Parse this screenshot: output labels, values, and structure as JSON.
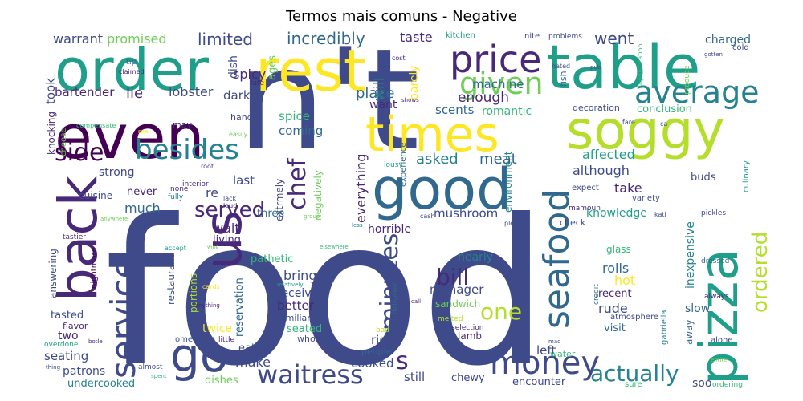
{
  "title": "Termos mais comuns - Negative",
  "palette": [
    "#440154",
    "#482878",
    "#3e4a89",
    "#31688e",
    "#26828e",
    "#1f9e89",
    "#35b779",
    "#6ece58",
    "#b5de2b",
    "#fde725"
  ],
  "words": [
    {
      "text": "food",
      "c": 2
    },
    {
      "text": "n't",
      "c": 2
    },
    {
      "text": "order",
      "c": 5
    },
    {
      "text": "rest",
      "c": 9
    },
    {
      "text": "table",
      "c": 5
    },
    {
      "text": "even",
      "c": 0
    },
    {
      "text": "times",
      "c": 9
    },
    {
      "text": "soggy",
      "c": 8
    },
    {
      "text": "good",
      "c": 3
    },
    {
      "text": "pizza",
      "c": 5
    },
    {
      "text": "back",
      "c": 1
    },
    {
      "text": "us",
      "c": 1
    },
    {
      "text": "go",
      "c": 2
    },
    {
      "text": "price",
      "c": 1
    },
    {
      "text": "given",
      "c": 7
    },
    {
      "text": "average",
      "c": 4
    },
    {
      "text": "seafood",
      "c": 3
    },
    {
      "text": "service",
      "c": 2
    },
    {
      "text": "side",
      "c": 0
    },
    {
      "text": "besides",
      "c": 4
    },
    {
      "text": "money",
      "c": 2
    },
    {
      "text": "waitress",
      "c": 2
    },
    {
      "text": "actually",
      "c": 4
    },
    {
      "text": "minutes",
      "c": 2
    },
    {
      "text": "chef",
      "c": 1
    },
    {
      "text": "served",
      "c": 1
    },
    {
      "text": "s",
      "c": 1
    },
    {
      "text": "bill",
      "c": 1
    },
    {
      "text": "one",
      "c": 8
    },
    {
      "text": "ordered",
      "c": 8
    },
    {
      "text": "limited",
      "c": 2
    },
    {
      "text": "incredibly",
      "c": 3
    },
    {
      "text": "went",
      "c": 2
    },
    {
      "text": "promised",
      "c": 7
    },
    {
      "text": "warrant",
      "c": 2
    },
    {
      "text": "taste",
      "c": 1
    },
    {
      "text": "charged",
      "c": 3
    },
    {
      "text": "kitchen",
      "c": 5
    },
    {
      "text": "nite",
      "c": 2
    },
    {
      "text": "problems",
      "c": 2
    },
    {
      "text": "cold",
      "c": 2
    },
    {
      "text": "ages",
      "c": 7
    },
    {
      "text": "will",
      "c": 4
    },
    {
      "text": "barely",
      "c": 9
    },
    {
      "text": "cost",
      "c": 1
    },
    {
      "text": "tip",
      "c": 3
    },
    {
      "text": "claimed",
      "c": 1
    },
    {
      "text": "took",
      "c": 2
    },
    {
      "text": "spicy",
      "c": 1
    },
    {
      "text": "dish",
      "c": 2
    },
    {
      "text": "late",
      "c": 1
    },
    {
      "text": "machine",
      "c": 3
    },
    {
      "text": "fish",
      "c": 3
    },
    {
      "text": "hated",
      "c": 2
    },
    {
      "text": "pub",
      "c": 2
    },
    {
      "text": "sophistication",
      "c": 6
    },
    {
      "text": "produce",
      "c": 7
    },
    {
      "text": "gotten",
      "c": 2
    },
    {
      "text": "bartender",
      "c": 1
    },
    {
      "text": "lie",
      "c": 1
    },
    {
      "text": "lobster",
      "c": 2
    },
    {
      "text": "dark",
      "c": 2
    },
    {
      "text": "place",
      "c": 3
    },
    {
      "text": "enough",
      "c": 1
    },
    {
      "text": "want",
      "c": 1
    },
    {
      "text": "scents",
      "c": 3
    },
    {
      "text": "romantic",
      "c": 6
    },
    {
      "text": "shows",
      "c": 1
    },
    {
      "text": "conclusion",
      "c": 6
    },
    {
      "text": "decoration",
      "c": 2
    },
    {
      "text": "may",
      "c": 1
    },
    {
      "text": "hands",
      "c": 2
    },
    {
      "text": "spice",
      "c": 6
    },
    {
      "text": "coming",
      "c": 3
    },
    {
      "text": "knocking",
      "c": 1
    },
    {
      "text": "compensate",
      "c": 6
    },
    {
      "text": "easily",
      "c": 7
    },
    {
      "text": "cheese",
      "c": 7
    },
    {
      "text": "see",
      "c": 9
    },
    {
      "text": "fare",
      "c": 2
    },
    {
      "text": "ca",
      "c": 2
    },
    {
      "text": "asked",
      "c": 4
    },
    {
      "text": "meat",
      "c": 3
    },
    {
      "text": "affected",
      "c": 5
    },
    {
      "text": "experience",
      "c": 3
    },
    {
      "text": "strong",
      "c": 2
    },
    {
      "text": "although",
      "c": 2
    },
    {
      "text": "take",
      "c": 1
    },
    {
      "text": "extrmely",
      "c": 2
    },
    {
      "text": "negatively",
      "c": 7
    },
    {
      "text": "environment",
      "c": 4
    },
    {
      "text": "buds",
      "c": 2
    },
    {
      "text": "culinary",
      "c": 5
    },
    {
      "text": "lousy",
      "c": 5
    },
    {
      "text": "roof",
      "c": 2
    },
    {
      "text": "interior",
      "c": 1
    },
    {
      "text": "last",
      "c": 2
    },
    {
      "text": "none",
      "c": 1
    },
    {
      "text": "fully",
      "c": 4
    },
    {
      "text": "lack",
      "c": 2
    },
    {
      "text": "loud",
      "c": 1
    },
    {
      "text": "never",
      "c": 1
    },
    {
      "text": "re",
      "c": 2
    },
    {
      "text": "cuisine",
      "c": 2
    },
    {
      "text": "much",
      "c": 3
    },
    {
      "text": "everything",
      "c": 1
    },
    {
      "text": "expect",
      "c": 2
    },
    {
      "text": "variety",
      "c": 2
    },
    {
      "text": "knowledge",
      "c": 5
    },
    {
      "text": "mushroom",
      "c": 2
    },
    {
      "text": "mamoun",
      "c": 1
    },
    {
      "text": "kati",
      "c": 2
    },
    {
      "text": "inexpensive",
      "c": 4
    },
    {
      "text": "pickles",
      "c": 2
    },
    {
      "text": "anywhere",
      "c": 7
    },
    {
      "text": "three",
      "c": 3
    },
    {
      "text": "group",
      "c": 7
    },
    {
      "text": "less",
      "c": 4
    },
    {
      "text": "cash",
      "c": 2
    },
    {
      "text": "plenty",
      "c": 2
    },
    {
      "text": "check",
      "c": 2
    },
    {
      "text": "wait",
      "c": 1
    },
    {
      "text": "horrible",
      "c": 1
    },
    {
      "text": "tastier",
      "c": 1
    },
    {
      "text": "living",
      "c": 1
    },
    {
      "text": "wife",
      "c": 2
    },
    {
      "text": "accept",
      "c": 5
    },
    {
      "text": "elsewhere",
      "c": 6
    },
    {
      "text": "glass",
      "c": 6
    },
    {
      "text": "dressed",
      "c": 3
    },
    {
      "text": "nightmare",
      "c": 0
    },
    {
      "text": "answering",
      "c": 2
    },
    {
      "text": "restaurant",
      "c": 2
    },
    {
      "text": "wine",
      "c": 7
    },
    {
      "text": "pathetic",
      "c": 6
    },
    {
      "text": "nearly",
      "c": 4
    },
    {
      "text": "rolls",
      "c": 3
    },
    {
      "text": "gabriella",
      "c": 4
    },
    {
      "text": "always",
      "c": 1
    },
    {
      "text": "reservation",
      "c": 3
    },
    {
      "text": "portions",
      "c": 8
    },
    {
      "text": "bring",
      "c": 2
    },
    {
      "text": "manager",
      "c": 2
    },
    {
      "text": "hot",
      "c": 9
    },
    {
      "text": "recent",
      "c": 1
    },
    {
      "text": "cards",
      "c": 9
    },
    {
      "text": "relatively",
      "c": 5
    },
    {
      "text": "received",
      "c": 2
    },
    {
      "text": "delivered",
      "c": 3
    },
    {
      "text": "call",
      "c": 1
    },
    {
      "text": "sandwich",
      "c": 7
    },
    {
      "text": "rude",
      "c": 2
    },
    {
      "text": "slow",
      "c": 3
    },
    {
      "text": "tasted",
      "c": 2
    },
    {
      "text": "flavor",
      "c": 1
    },
    {
      "text": "two",
      "c": 1
    },
    {
      "text": "better",
      "c": 1
    },
    {
      "text": "anything",
      "c": 1
    },
    {
      "text": "familiar",
      "c": 2
    },
    {
      "text": "melted",
      "c": 8
    },
    {
      "text": "credit",
      "c": 3
    },
    {
      "text": "atmosphere",
      "c": 2
    },
    {
      "text": "visit",
      "c": 3
    },
    {
      "text": "twice",
      "c": 9
    },
    {
      "text": "seated",
      "c": 6
    },
    {
      "text": "selection",
      "c": 1
    },
    {
      "text": "bad",
      "c": 8
    },
    {
      "text": "lamb",
      "c": 1
    },
    {
      "text": "away",
      "c": 3
    },
    {
      "text": "alone",
      "c": 2
    },
    {
      "text": "overdone",
      "c": 5
    },
    {
      "text": "botle",
      "c": 1
    },
    {
      "text": "omelettes",
      "c": 2
    },
    {
      "text": "little",
      "c": 1
    },
    {
      "text": "whole",
      "c": 2
    },
    {
      "text": "right",
      "c": 2
    },
    {
      "text": "seating",
      "c": 2
    },
    {
      "text": "eat",
      "c": 2
    },
    {
      "text": "people",
      "c": 3
    },
    {
      "text": "left",
      "c": 2
    },
    {
      "text": "water",
      "c": 6
    },
    {
      "text": "mad",
      "c": 2
    },
    {
      "text": "entire",
      "c": 7
    },
    {
      "text": "thing",
      "c": 2
    },
    {
      "text": "almost",
      "c": 2
    },
    {
      "text": "make",
      "c": 2
    },
    {
      "text": "cooked",
      "c": 2
    },
    {
      "text": "patrons",
      "c": 2
    },
    {
      "text": "spent",
      "c": 6
    },
    {
      "text": "undercooked",
      "c": 4
    },
    {
      "text": "dishes",
      "c": 7
    },
    {
      "text": "still",
      "c": 2
    },
    {
      "text": "chewy",
      "c": 2
    },
    {
      "text": "encounter",
      "c": 2
    },
    {
      "text": "sure",
      "c": 6
    },
    {
      "text": "soo",
      "c": 2
    },
    {
      "text": "ordering",
      "c": 6
    }
  ]
}
